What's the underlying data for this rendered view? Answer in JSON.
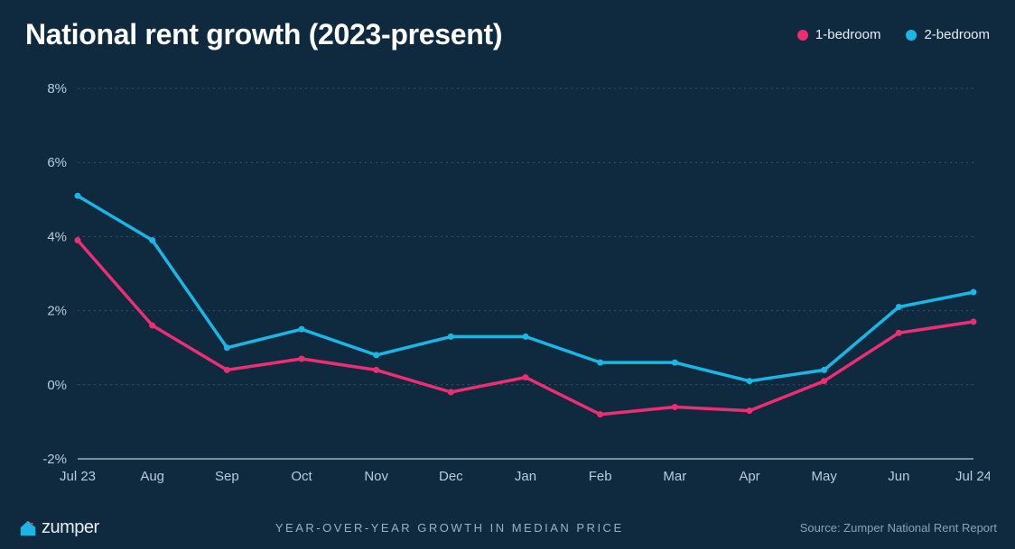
{
  "header": {
    "title": "National rent growth (2023-present)"
  },
  "legend": {
    "items": [
      {
        "label": "1-bedroom",
        "color": "#ee2e74"
      },
      {
        "label": "2-bedroom",
        "color": "#1ab6e6"
      }
    ]
  },
  "chart": {
    "type": "line",
    "background_color": "#0f2a3f",
    "grid_color": "#3a5366",
    "axis_color": "#9ab0bf",
    "tick_label_color": "#b9cbd9",
    "tick_fontsize": 15,
    "line_width": 3.5,
    "marker_radius": 3.5,
    "x": {
      "labels": [
        "Jul 23",
        "Aug",
        "Sep",
        "Oct",
        "Nov",
        "Dec",
        "Jan",
        "Feb",
        "Mar",
        "Apr",
        "May",
        "Jun",
        "Jul 24"
      ]
    },
    "y": {
      "min": -2,
      "max": 8,
      "ticks": [
        -2,
        0,
        2,
        4,
        6,
        8
      ],
      "tick_suffix": "%"
    },
    "series": [
      {
        "name": "1-bedroom",
        "color": "#ee2e74",
        "values": [
          3.9,
          1.6,
          0.4,
          0.7,
          0.4,
          -0.2,
          0.2,
          -0.8,
          -0.6,
          -0.7,
          0.1,
          1.4,
          1.7
        ]
      },
      {
        "name": "2-bedroom",
        "color": "#1ab6e6",
        "values": [
          5.1,
          3.9,
          1.0,
          1.5,
          0.8,
          1.3,
          1.3,
          0.6,
          0.6,
          0.1,
          0.4,
          2.1,
          2.5
        ]
      }
    ]
  },
  "footer": {
    "logo_text": "zumper",
    "logo_color": "#e6eef4",
    "logo_icon_color": "#1ab6e6",
    "logo_heart_color": "#ee2e74",
    "subtitle": "YEAR-OVER-YEAR GROWTH IN MEDIAN PRICE",
    "source": "Source: Zumper National Rent Report"
  }
}
